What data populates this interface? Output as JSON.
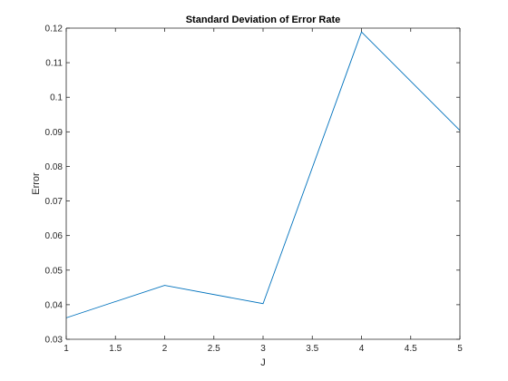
{
  "chart_data": {
    "type": "line",
    "title": "Standard Deviation of Error Rate",
    "xlabel": "J",
    "ylabel": "Error",
    "x": [
      1,
      2,
      3,
      4,
      5
    ],
    "series": [
      {
        "values": [
          0.0362,
          0.0456,
          0.0403,
          0.1189,
          0.0904
        ],
        "color": "#0072BD"
      }
    ],
    "xlim": [
      1,
      5
    ],
    "ylim": [
      0.03,
      0.12
    ],
    "xticks": [
      1,
      1.5,
      2,
      2.5,
      3,
      3.5,
      4,
      4.5,
      5
    ],
    "xtick_labels": [
      "1",
      "1.5",
      "2",
      "2.5",
      "3",
      "3.5",
      "4",
      "4.5",
      "5"
    ],
    "yticks": [
      0.03,
      0.04,
      0.05,
      0.06,
      0.07,
      0.08,
      0.09,
      0.1,
      0.11,
      0.12
    ],
    "ytick_labels": [
      "0.03",
      "0.04",
      "0.05",
      "0.06",
      "0.07",
      "0.08",
      "0.09",
      "0.1",
      "0.11",
      "0.12"
    ],
    "grid": false,
    "box": true
  }
}
